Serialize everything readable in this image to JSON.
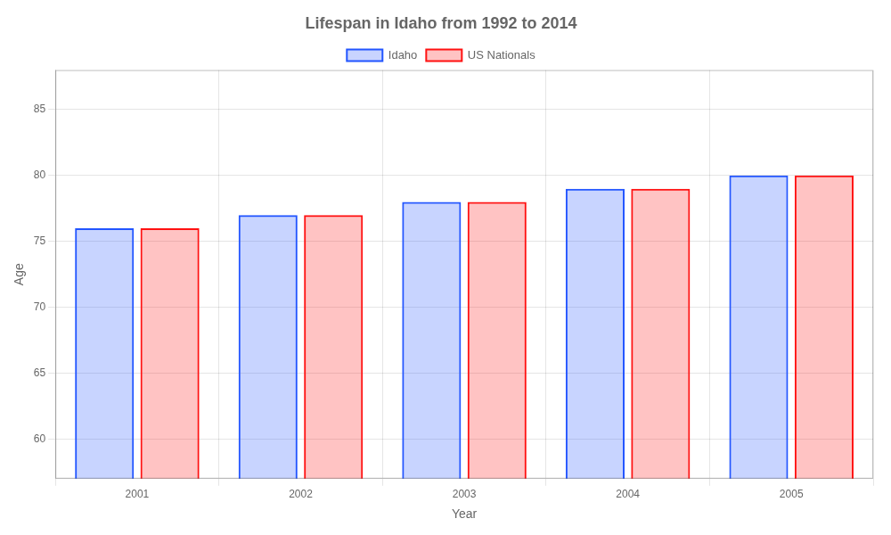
{
  "chart_data": {
    "type": "bar",
    "title": "Lifespan in Idaho from 1992 to 2014",
    "xlabel": "Year",
    "ylabel": "Age",
    "categories": [
      "2001",
      "2002",
      "2003",
      "2004",
      "2005"
    ],
    "series": [
      {
        "name": "Idaho",
        "color": "#2255ff",
        "values": [
          76,
          77,
          78,
          79,
          80
        ]
      },
      {
        "name": "US Nationals",
        "color": "#ff1111",
        "values": [
          76,
          77,
          78,
          79,
          80
        ]
      }
    ],
    "ylim": [
      57,
      88
    ],
    "yticks": [
      60,
      65,
      70,
      75,
      80,
      85
    ],
    "grid": true,
    "legend": "top"
  }
}
